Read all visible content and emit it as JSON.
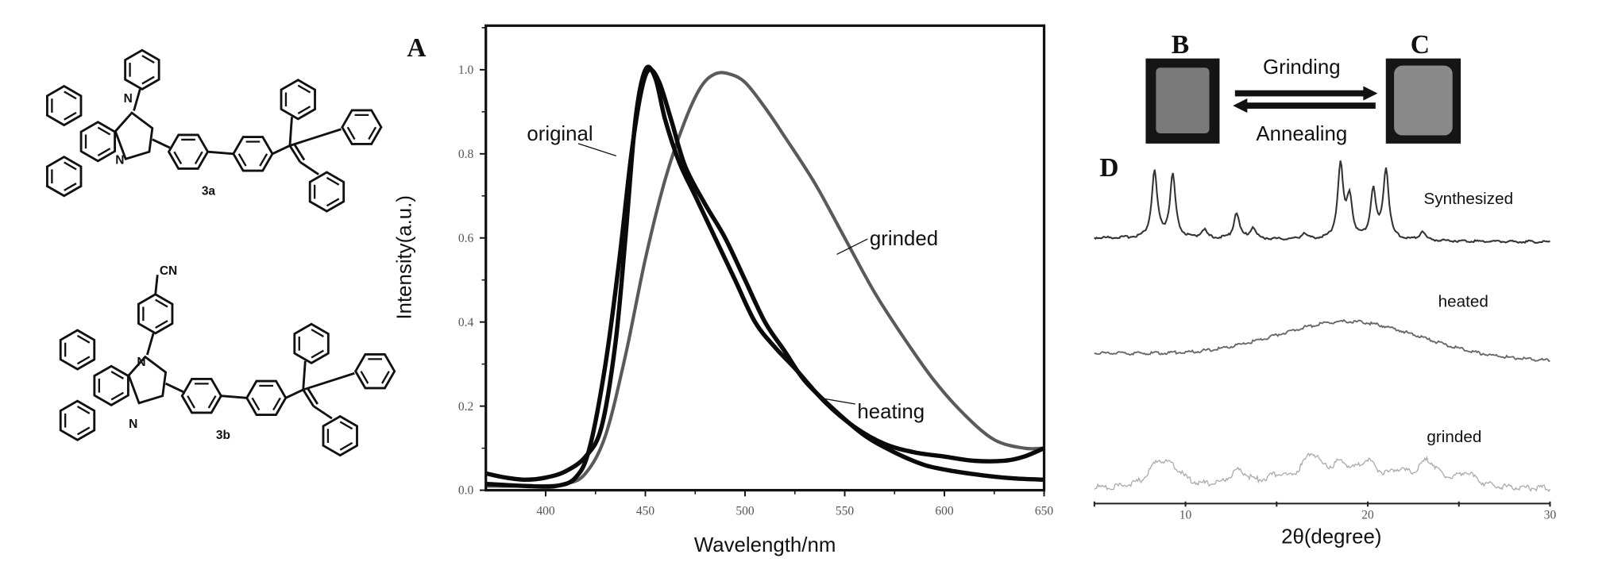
{
  "structures": {
    "compound_a": {
      "label": "3a",
      "atoms": [
        "N",
        "N"
      ]
    },
    "compound_b": {
      "label": "3b",
      "atoms": [
        "N",
        "N",
        "CN"
      ]
    }
  },
  "chart_data": [
    {
      "panel": "A",
      "type": "line",
      "title": "",
      "xlabel": "Wavelength/nm",
      "ylabel": "Intensity(a.u.)",
      "xlim": [
        370,
        650
      ],
      "ylim": [
        0,
        1.1
      ],
      "xticks": [
        "400",
        "450",
        "500",
        "550",
        "600",
        "650"
      ],
      "xtick_values": [
        400,
        450,
        500,
        550,
        600,
        650
      ],
      "yticks": [
        "0.0",
        "0.2",
        "0.4",
        "0.6",
        "0.8",
        "1.0"
      ],
      "ytick_values": [
        0,
        0.2,
        0.4,
        0.6,
        0.8,
        1.0
      ],
      "grid": false,
      "series": [
        {
          "name": "original",
          "color": "#0a0a0a",
          "x": [
            370,
            380,
            390,
            400,
            410,
            420,
            428,
            435,
            440,
            445,
            450,
            455,
            460,
            467,
            475,
            485,
            495,
            505,
            515,
            525,
            540,
            555,
            570,
            585,
            600,
            615,
            630,
            640,
            650
          ],
          "y": [
            0.04,
            0.03,
            0.025,
            0.03,
            0.045,
            0.08,
            0.15,
            0.35,
            0.6,
            0.88,
            1.0,
            0.98,
            0.88,
            0.78,
            0.7,
            0.6,
            0.5,
            0.4,
            0.34,
            0.29,
            0.21,
            0.15,
            0.11,
            0.09,
            0.08,
            0.07,
            0.07,
            0.08,
            0.1
          ]
        },
        {
          "name": "heating",
          "color": "#0a0a0a",
          "x": [
            370,
            390,
            405,
            415,
            422,
            430,
            437,
            443,
            448,
            452,
            457,
            463,
            470,
            480,
            490,
            500,
            510,
            520,
            530,
            545,
            560,
            575,
            590,
            605,
            620,
            635,
            650
          ],
          "y": [
            0.015,
            0.01,
            0.01,
            0.03,
            0.1,
            0.3,
            0.55,
            0.8,
            0.95,
            1.0,
            0.97,
            0.88,
            0.77,
            0.68,
            0.6,
            0.5,
            0.4,
            0.33,
            0.26,
            0.19,
            0.13,
            0.09,
            0.06,
            0.045,
            0.035,
            0.028,
            0.025
          ]
        },
        {
          "name": "grinded",
          "color": "#5a5a5a",
          "x": [
            370,
            395,
            410,
            420,
            430,
            440,
            450,
            460,
            470,
            478,
            485,
            492,
            500,
            510,
            520,
            535,
            550,
            565,
            580,
            595,
            610,
            625,
            640,
            650
          ],
          "y": [
            0.01,
            0.01,
            0.015,
            0.04,
            0.13,
            0.32,
            0.55,
            0.74,
            0.88,
            0.96,
            0.99,
            0.99,
            0.97,
            0.91,
            0.84,
            0.73,
            0.6,
            0.47,
            0.36,
            0.26,
            0.18,
            0.12,
            0.1,
            0.1
          ]
        }
      ],
      "annotations": [
        "original",
        "grinded",
        "heating"
      ]
    },
    {
      "panel": "D",
      "type": "line",
      "xlabel": "2θ(degree)",
      "ylabel": "",
      "xlim": [
        5,
        30
      ],
      "xticks": [
        "10",
        "20",
        "30"
      ],
      "xtick_values": [
        10,
        20,
        30
      ],
      "grid": false,
      "series": [
        {
          "name": "Synthesized",
          "color": "#333333",
          "peaks": [
            [
              8.3,
              0.9
            ],
            [
              9.3,
              0.85
            ],
            [
              11.0,
              0.12
            ],
            [
              12.8,
              0.35
            ],
            [
              13.7,
              0.15
            ],
            [
              16.5,
              0.08
            ],
            [
              18.5,
              1.0
            ],
            [
              19.0,
              0.55
            ],
            [
              20.3,
              0.65
            ],
            [
              21.0,
              0.95
            ],
            [
              23.0,
              0.12
            ]
          ]
        },
        {
          "name": "heated",
          "color": "#666666",
          "hump": {
            "center": 19,
            "height": 0.45
          }
        },
        {
          "name": "grinded",
          "color": "#aaaaaa",
          "peaks": [
            [
              8.5,
              0.7
            ],
            [
              9.3,
              0.5
            ],
            [
              12.9,
              0.5
            ],
            [
              15.0,
              0.3
            ],
            [
              16.9,
              1.0
            ],
            [
              18.5,
              0.6
            ],
            [
              20.0,
              0.7
            ],
            [
              21.7,
              0.4
            ],
            [
              23.3,
              0.8
            ],
            [
              25.4,
              0.45
            ]
          ]
        }
      ]
    }
  ],
  "panel_labels": {
    "a": "A",
    "b": "B",
    "c": "C",
    "d": "D"
  },
  "photos": {
    "b": {
      "label": "B",
      "fill": "#7a7a7a"
    },
    "c": {
      "label": "C",
      "fill": "#8a8a8a"
    },
    "forward": "Grinding",
    "reverse": "Annealing"
  }
}
